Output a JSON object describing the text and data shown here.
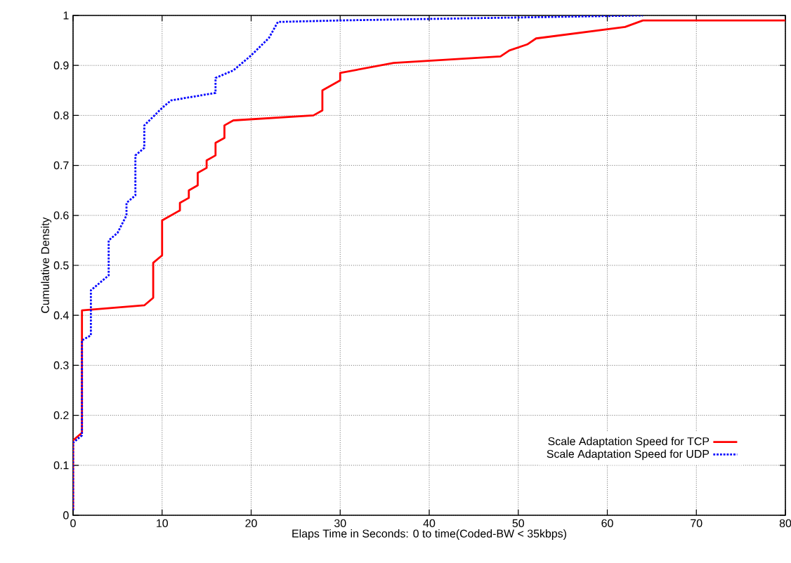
{
  "chart_data": {
    "type": "line",
    "xlabel": "Elaps Time in Seconds: 0 to time(Coded-BW < 35kbps)",
    "ylabel": "Cumulative Density",
    "xlim": [
      0,
      80
    ],
    "ylim": [
      0,
      1
    ],
    "xticks": [
      0,
      10,
      20,
      30,
      40,
      50,
      60,
      70,
      80
    ],
    "yticks": [
      0,
      0.1,
      0.2,
      0.3,
      0.4,
      0.5,
      0.6,
      0.7,
      0.8,
      0.9,
      1
    ],
    "grid": true,
    "legend": "bottom right",
    "marker": "none",
    "series": [
      {
        "name": "Scale Adaptation Speed for TCP",
        "color": "#ff0000",
        "line_style": "solid",
        "x": [
          0,
          0,
          1,
          1,
          8,
          9,
          9,
          10,
          10,
          12,
          12,
          13,
          13,
          14,
          14,
          15,
          15,
          16,
          16,
          17,
          17,
          18,
          27,
          28,
          28,
          30,
          30,
          36,
          48,
          49,
          51,
          52,
          62,
          64,
          80
        ],
        "values": [
          0.01,
          0.15,
          0.165,
          0.41,
          0.42,
          0.435,
          0.505,
          0.52,
          0.59,
          0.61,
          0.625,
          0.635,
          0.65,
          0.66,
          0.685,
          0.695,
          0.71,
          0.72,
          0.745,
          0.755,
          0.78,
          0.79,
          0.8,
          0.81,
          0.85,
          0.87,
          0.885,
          0.905,
          0.918,
          0.93,
          0.942,
          0.954,
          0.977,
          0.99,
          0.99
        ]
      },
      {
        "name": "Scale Adaptation Speed for UDP",
        "color": "#0000ff",
        "line_style": "dotted",
        "x": [
          0,
          0,
          1,
          1,
          2,
          2,
          4,
          4,
          5,
          6,
          6,
          7,
          7,
          8,
          8,
          10,
          11,
          16,
          16,
          18,
          20,
          22,
          23,
          30,
          40,
          64
        ],
        "values": [
          0.01,
          0.145,
          0.16,
          0.35,
          0.36,
          0.45,
          0.48,
          0.55,
          0.565,
          0.6,
          0.625,
          0.64,
          0.72,
          0.735,
          0.78,
          0.815,
          0.83,
          0.845,
          0.875,
          0.89,
          0.92,
          0.955,
          0.987,
          0.99,
          0.993,
          1.0
        ]
      }
    ]
  }
}
